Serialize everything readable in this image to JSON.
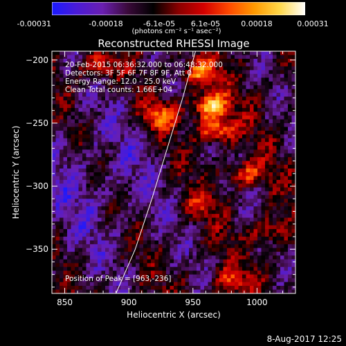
{
  "colorbar": {
    "ticks": [
      "-0.00031",
      "-0.00018",
      "-6.1e-05",
      "6.1e-05",
      "0.00018",
      "0.00031"
    ],
    "unit_label": "(photons cm⁻² s⁻¹ asec⁻²)",
    "colors": [
      "#1a1aff",
      "#4b1bd6",
      "#6a1fb0",
      "#3a0a3a",
      "#000000",
      "#8a0000",
      "#d40000",
      "#ff4a00",
      "#ff9a00",
      "#ffd84a",
      "#ffffff"
    ]
  },
  "plot": {
    "title": "Reconstructed RHESSI Image",
    "info_lines": [
      "20-Feb-2015 06:36:32.000 to 06:48:32.000",
      "Detectors: 3F 5F 6F 7F 8F 9F, Att 0",
      "Energy Range: 12.0 - 25.0 keV",
      "Clean     Total counts: 1.66E+04"
    ],
    "peak_label": "Position of Peak = [963,-236]"
  },
  "footer": {
    "date": "8-Aug-2017 12:25"
  },
  "chart_data": {
    "type": "heatmap",
    "title": "Reconstructed RHESSI Image",
    "xlabel": "Heliocentric X (arcsec)",
    "ylabel": "Heliocentric Y (arcsec)",
    "xlim": [
      840,
      1030
    ],
    "ylim": [
      -385,
      -193
    ],
    "x_ticks": [
      850,
      900,
      950,
      1000
    ],
    "y_ticks": [
      -200,
      -250,
      -300,
      -350
    ],
    "colorbar_range": [
      -0.00031,
      0.00031
    ],
    "peak": [
      963,
      -236
    ],
    "sources": [
      {
        "x": 963,
        "y": -236,
        "amp": 1.0
      },
      {
        "x": 968,
        "y": -255,
        "amp": 0.85
      },
      {
        "x": 955,
        "y": -210,
        "amp": 0.7
      },
      {
        "x": 925,
        "y": -245,
        "amp": 0.65
      },
      {
        "x": 990,
        "y": -290,
        "amp": 0.6
      },
      {
        "x": 875,
        "y": -205,
        "amp": 0.55
      },
      {
        "x": 1010,
        "y": -335,
        "amp": 0.5
      },
      {
        "x": 980,
        "y": -375,
        "amp": 0.45
      },
      {
        "x": 955,
        "y": -315,
        "amp": 0.35
      }
    ],
    "limb_curve": [
      [
        890,
        -385
      ],
      [
        905,
        -350
      ],
      [
        918,
        -310
      ],
      [
        930,
        -270
      ],
      [
        942,
        -230
      ],
      [
        952,
        -193
      ]
    ]
  }
}
